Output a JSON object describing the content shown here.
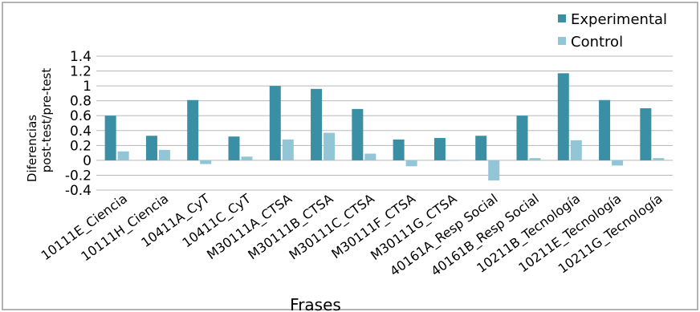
{
  "chart_data": {
    "type": "bar",
    "title": "",
    "xlabel": "Frases",
    "ylabel_lines": [
      "Diferencias",
      "post-test/pre-test"
    ],
    "ylim": [
      -0.4,
      1.4
    ],
    "yticks": [
      -0.4,
      -0.2,
      0,
      0.2,
      0.4,
      0.6,
      0.8,
      1,
      1.2,
      1.4
    ],
    "ytick_labels": [
      "-0.4",
      "-0.2",
      "0",
      "0.2",
      "0.4",
      "0.6",
      "0.8",
      "1",
      "1.2",
      "1.4"
    ],
    "grid": true,
    "legend_position": "top-right",
    "categories": [
      "10111E_Ciencia",
      "10111H_Ciencia",
      "10411A_CyT",
      "10411C_CyT",
      "M30111A_CTSA",
      "M30111B_CTSA",
      "M30111C_CTSA",
      "M30111F_CTSA",
      "M30111G_CTSA",
      "40161A_Resp Social",
      "40161B_Resp Social",
      "10211B_Tecnología",
      "10211E_Tecnología",
      "10211G_Tecnología"
    ],
    "series": [
      {
        "name": "Experimental",
        "color": "#3a8fa5",
        "values": [
          0.6,
          0.33,
          0.81,
          0.32,
          1.0,
          0.96,
          0.69,
          0.28,
          0.3,
          0.33,
          0.6,
          1.17,
          0.81,
          0.7
        ]
      },
      {
        "name": "Control",
        "color": "#92c5d6",
        "values": [
          0.12,
          0.14,
          -0.05,
          0.05,
          0.28,
          0.37,
          0.09,
          -0.08,
          0.0,
          -0.27,
          0.03,
          0.27,
          -0.07,
          0.03
        ]
      }
    ]
  }
}
